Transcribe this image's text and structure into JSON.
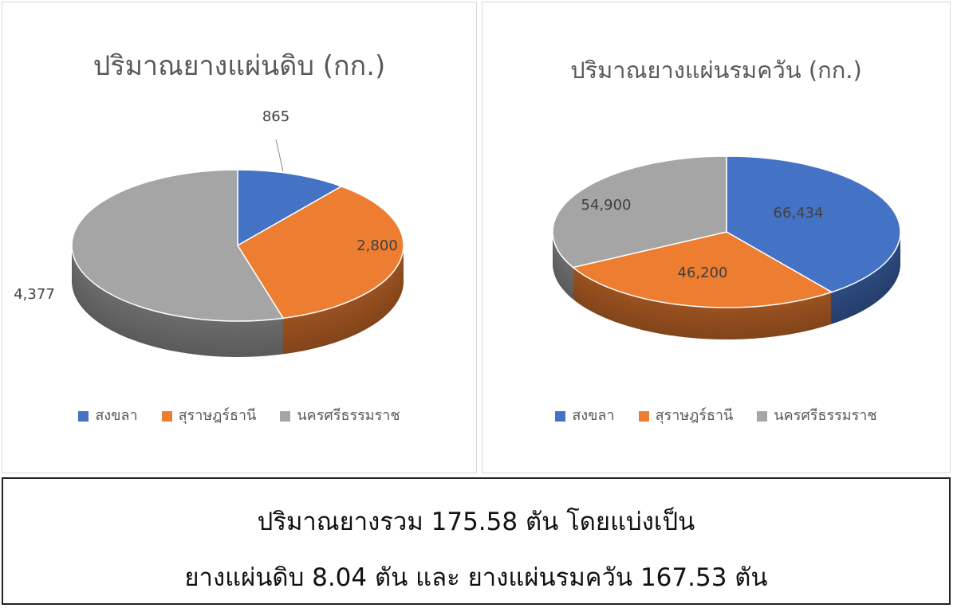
{
  "chart_data": [
    {
      "type": "pie",
      "title": "ปริมาณยางแผ่นดิบ (กก.)",
      "categories": [
        "สงขลา",
        "สุราษฎร์ธานี",
        "นครศรีธรรมราช"
      ],
      "values": [
        865,
        2800,
        4377
      ],
      "data_labels": [
        "865",
        "2,800",
        "4,377"
      ],
      "colors": [
        "#4472c4",
        "#ed7d31",
        "#a5a5a5"
      ],
      "legend": "bottom",
      "style": "3d"
    },
    {
      "type": "pie",
      "title": "ปริมาณยางแผ่นรมควัน (กก.)",
      "categories": [
        "สงขลา",
        "สุราษฎร์ธานี",
        "นครศรีธรรมราช"
      ],
      "values": [
        66434,
        46200,
        54900
      ],
      "data_labels": [
        "66,434",
        "46,200",
        "54,900"
      ],
      "colors": [
        "#4472c4",
        "#ed7d31",
        "#a5a5a5"
      ],
      "legend": "bottom",
      "style": "3d"
    }
  ],
  "summary": {
    "line1": "ปริมาณยางรวม 175.58 ตัน โดยแบ่งเป็น",
    "line2": "ยางแผ่นดิบ 8.04 ตัน และ ยางแผ่นรมควัน 167.53 ตัน"
  }
}
